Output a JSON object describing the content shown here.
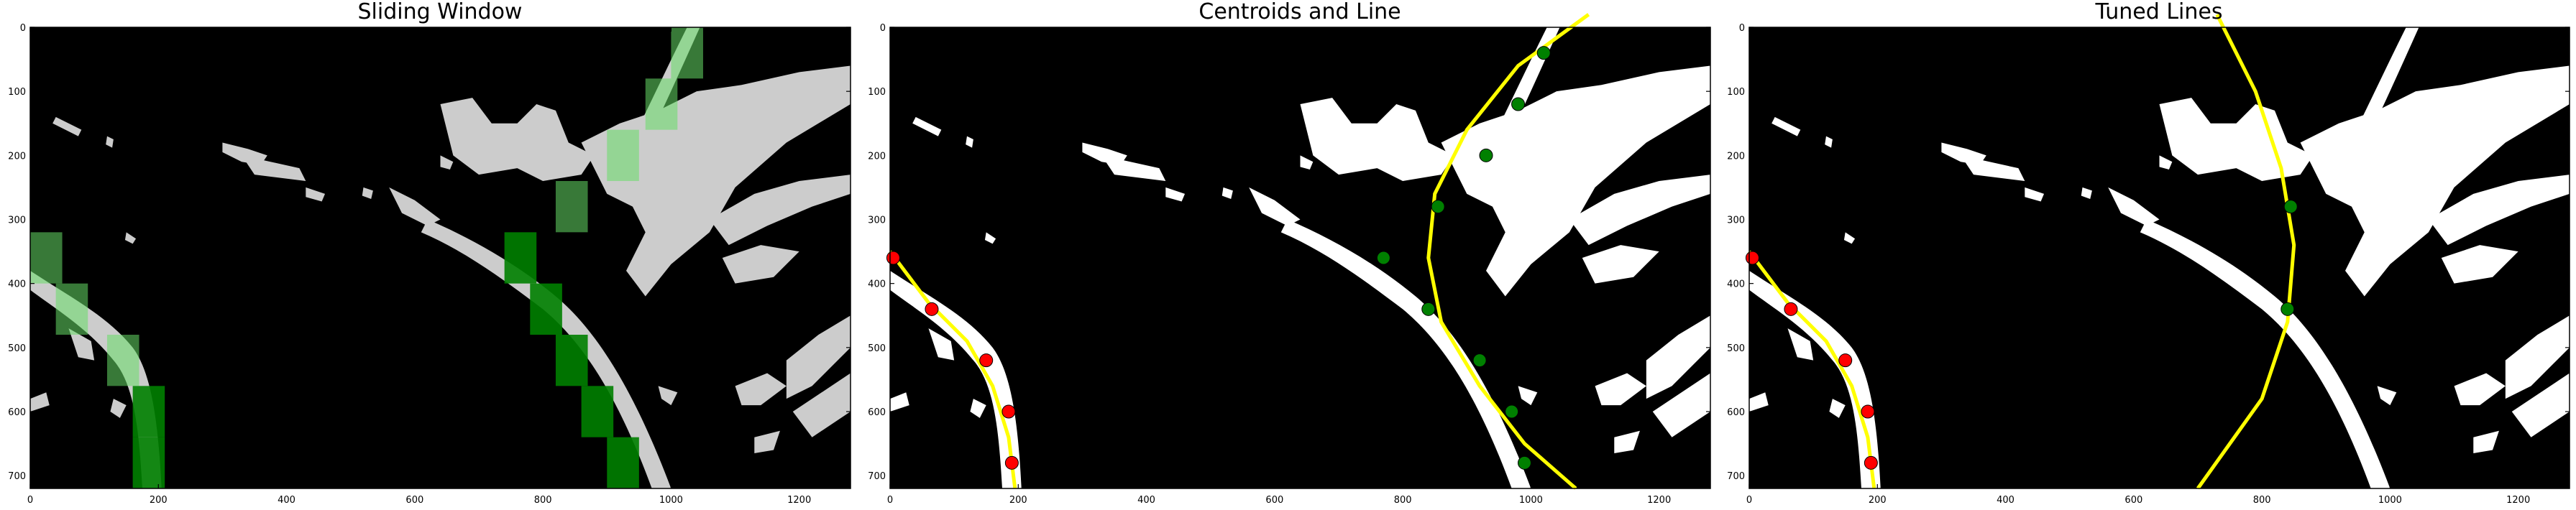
{
  "chart_data": [
    {
      "type": "image-plot",
      "title": "Sliding Window",
      "xlim": [
        0,
        1280
      ],
      "ylim": [
        720,
        0
      ],
      "xticks": [
        0,
        200,
        400,
        600,
        800,
        1000,
        1200
      ],
      "yticks": [
        0,
        100,
        200,
        300,
        400,
        500,
        600,
        700
      ],
      "windows_left": [
        [
          0,
          320
        ],
        [
          40,
          400
        ],
        [
          120,
          480
        ],
        [
          160,
          560
        ],
        [
          160,
          640
        ]
      ],
      "windows_right": [
        [
          1000,
          0
        ],
        [
          960,
          80
        ],
        [
          900,
          160
        ],
        [
          820,
          240
        ],
        [
          740,
          320
        ],
        [
          780,
          400
        ],
        [
          820,
          480
        ],
        [
          860,
          560
        ],
        [
          900,
          640
        ]
      ],
      "window_size": [
        50,
        80
      ],
      "highlight_windows": [
        [
          0,
          320
        ],
        [
          40,
          400
        ],
        [
          120,
          480
        ],
        [
          1000,
          0
        ],
        [
          960,
          80
        ],
        [
          900,
          160
        ],
        [
          820,
          240
        ]
      ]
    },
    {
      "type": "scatter",
      "title": "Centroids and Line",
      "xlim": [
        0,
        1280
      ],
      "ylim": [
        720,
        0
      ],
      "xticks": [
        0,
        200,
        400,
        600,
        800,
        1000,
        1200
      ],
      "yticks": [
        0,
        100,
        200,
        300,
        400,
        500,
        600,
        700
      ],
      "left_centroids": [
        [
          5,
          360
        ],
        [
          65,
          440
        ],
        [
          150,
          520
        ],
        [
          185,
          600
        ],
        [
          190,
          680
        ]
      ],
      "right_centroids": [
        [
          1020,
          40
        ],
        [
          980,
          120
        ],
        [
          930,
          200
        ],
        [
          855,
          280
        ],
        [
          770,
          360
        ],
        [
          840,
          440
        ],
        [
          920,
          520
        ],
        [
          970,
          600
        ],
        [
          990,
          680
        ]
      ],
      "left_fit": [
        [
          0,
          350
        ],
        [
          60,
          430
        ],
        [
          120,
          490
        ],
        [
          160,
          560
        ],
        [
          185,
          640
        ],
        [
          195,
          720
        ]
      ],
      "right_fit": [
        [
          1090,
          -20
        ],
        [
          980,
          60
        ],
        [
          900,
          160
        ],
        [
          850,
          260
        ],
        [
          840,
          360
        ],
        [
          860,
          460
        ],
        [
          920,
          560
        ],
        [
          990,
          650
        ],
        [
          1070,
          720
        ]
      ],
      "colors": {
        "left": "#ff0000",
        "right": "#008000",
        "line": "#ffff00"
      }
    },
    {
      "type": "scatter",
      "title": "Tuned Lines",
      "xlim": [
        0,
        1280
      ],
      "ylim": [
        720,
        0
      ],
      "xticks": [
        0,
        200,
        400,
        600,
        800,
        1000,
        1200
      ],
      "yticks": [
        0,
        100,
        200,
        300,
        400,
        500,
        600,
        700
      ],
      "left_centroids": [
        [
          5,
          360
        ],
        [
          65,
          440
        ],
        [
          150,
          520
        ],
        [
          185,
          600
        ],
        [
          190,
          680
        ]
      ],
      "right_centroids": [
        [
          845,
          280
        ],
        [
          840,
          440
        ]
      ],
      "left_fit": [
        [
          0,
          350
        ],
        [
          60,
          430
        ],
        [
          120,
          490
        ],
        [
          160,
          560
        ],
        [
          185,
          640
        ],
        [
          195,
          720
        ]
      ],
      "right_fit": [
        [
          730,
          -20
        ],
        [
          790,
          100
        ],
        [
          830,
          220
        ],
        [
          850,
          340
        ],
        [
          840,
          460
        ],
        [
          800,
          580
        ],
        [
          700,
          720
        ]
      ],
      "colors": {
        "left": "#ff0000",
        "right": "#008000",
        "line": "#ffff00"
      }
    }
  ]
}
